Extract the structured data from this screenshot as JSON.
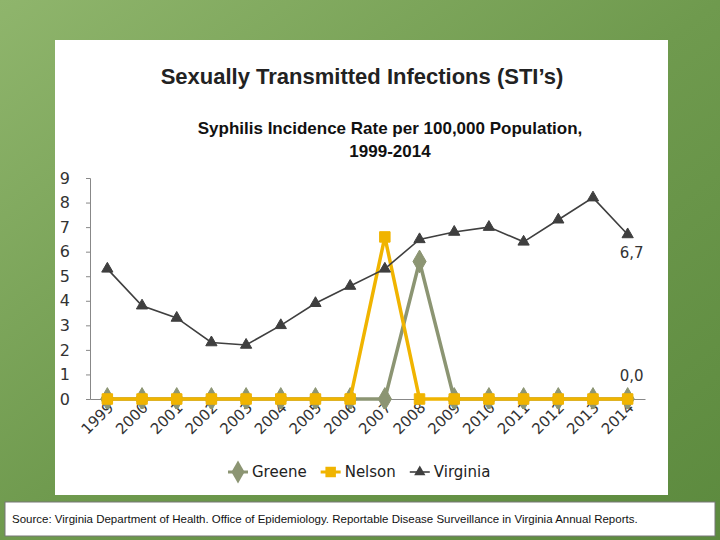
{
  "chart_data": {
    "type": "line",
    "title": "Sexually Transmitted Infections (STI’s)",
    "subtitle": "Syphilis Incidence Rate per 100,000 Population, 1999-2014",
    "categories": [
      "1999",
      "2000",
      "2001",
      "2002",
      "2003",
      "2004",
      "2005",
      "2006",
      "2007",
      "2008",
      "2009",
      "2010",
      "2011",
      "2012",
      "2013",
      "2014"
    ],
    "series": [
      {
        "name": "Greene",
        "color": "#8c9573",
        "marker": "diamond",
        "values": [
          0,
          0,
          0,
          0,
          0,
          0,
          0,
          0,
          0,
          5.6,
          0,
          0,
          0,
          0,
          0,
          0
        ]
      },
      {
        "name": "Nelson",
        "color": "#f0b400",
        "marker": "square",
        "values": [
          0,
          0,
          0,
          0,
          0,
          0,
          0,
          0,
          6.6,
          0,
          0,
          0,
          0,
          0,
          0,
          0
        ]
      },
      {
        "name": "Virginia",
        "color": "#3f3f3f",
        "marker": "triangle",
        "values": [
          5.3,
          3.8,
          3.3,
          2.3,
          2.2,
          3,
          3.9,
          4.6,
          5.3,
          6.5,
          6.8,
          7,
          6.4,
          7.3,
          8.2,
          6.7
        ]
      }
    ],
    "ylim": [
      0,
      9
    ],
    "yticks": [
      0,
      1,
      2,
      3,
      4,
      5,
      6,
      7,
      8,
      9
    ],
    "grid": false,
    "legend": "bottom",
    "annotations": [
      {
        "text": "6,7",
        "x": "2014",
        "y": 6.7
      },
      {
        "text": "0,0",
        "x": "2014",
        "y": 0
      }
    ],
    "source": "Source: Virginia Department of Health. Office of Epidemiology. Reportable Disease Surveillance in Virginia Annual Reports."
  }
}
